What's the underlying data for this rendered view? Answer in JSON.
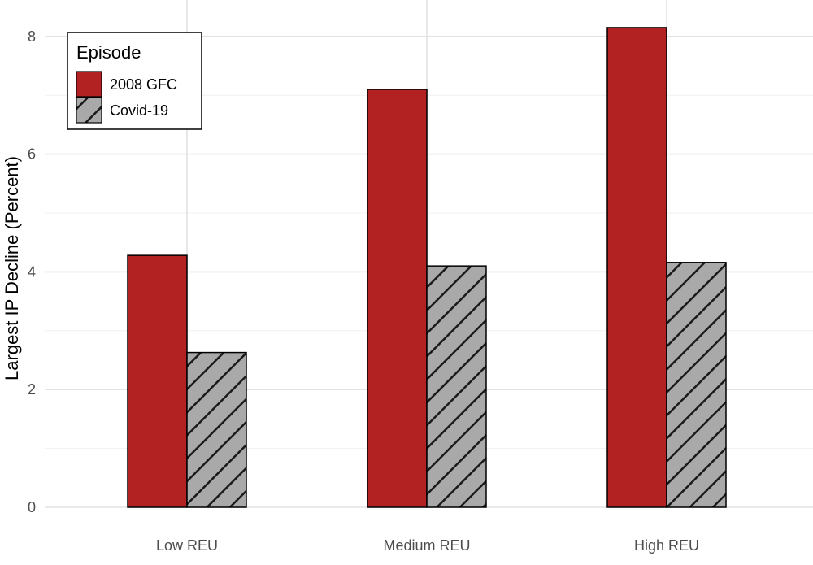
{
  "chart_data": {
    "type": "bar",
    "title": "",
    "xlabel": "",
    "ylabel": "Largest IP Decline (Percent)",
    "categories": [
      "Low REU",
      "Medium REU",
      "High REU"
    ],
    "series": [
      {
        "name": "2008 GFC",
        "values": [
          4.28,
          7.1,
          8.15
        ],
        "color": "#B22222",
        "pattern": "solid"
      },
      {
        "name": "Covid-19",
        "values": [
          2.63,
          4.1,
          4.16
        ],
        "color": "#A9A9A9",
        "pattern": "diagonal-hatch"
      }
    ],
    "ylim": [
      0,
      8.3
    ],
    "yticks": [
      0,
      2,
      4,
      6,
      8
    ],
    "grid": true,
    "legend": {
      "title": "Episode",
      "placement": "top-left"
    }
  }
}
